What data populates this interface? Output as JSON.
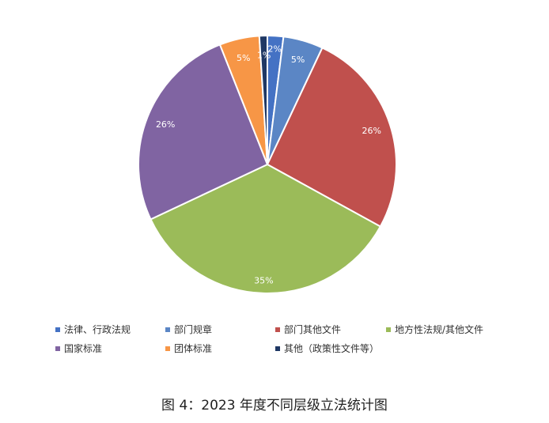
{
  "chart_data": {
    "type": "pie",
    "categories": [
      "法律、行政法规",
      "部门规章",
      "部门其他文件",
      "地方性法规/其他文件",
      "国家标准",
      "团体标准",
      "其他（政策性文件等）"
    ],
    "values": [
      2,
      5,
      26,
      35,
      26,
      5,
      1
    ],
    "value_labels": [
      "2%",
      "5%",
      "26%",
      "35%",
      "26%",
      "5%",
      "1%"
    ],
    "colors": [
      "#4472C4",
      "#5B86C5",
      "#C0504D",
      "#9BBB59",
      "#8064A2",
      "#F79646",
      "#1F3864"
    ],
    "legend_position": "bottom"
  },
  "legend": {
    "items": [
      {
        "label": "法律、行政法规",
        "color": "#4472C4"
      },
      {
        "label": "部门规章",
        "color": "#5B86C5"
      },
      {
        "label": "部门其他文件",
        "color": "#C0504D"
      },
      {
        "label": "地方性法规/其他文件",
        "color": "#9BBB59"
      },
      {
        "label": "国家标准",
        "color": "#8064A2"
      },
      {
        "label": "团体标准",
        "color": "#F79646"
      },
      {
        "label": "其他（政策性文件等）",
        "color": "#1F3864"
      }
    ]
  },
  "caption": "图 4：2023 年度不同层级立法统计图"
}
